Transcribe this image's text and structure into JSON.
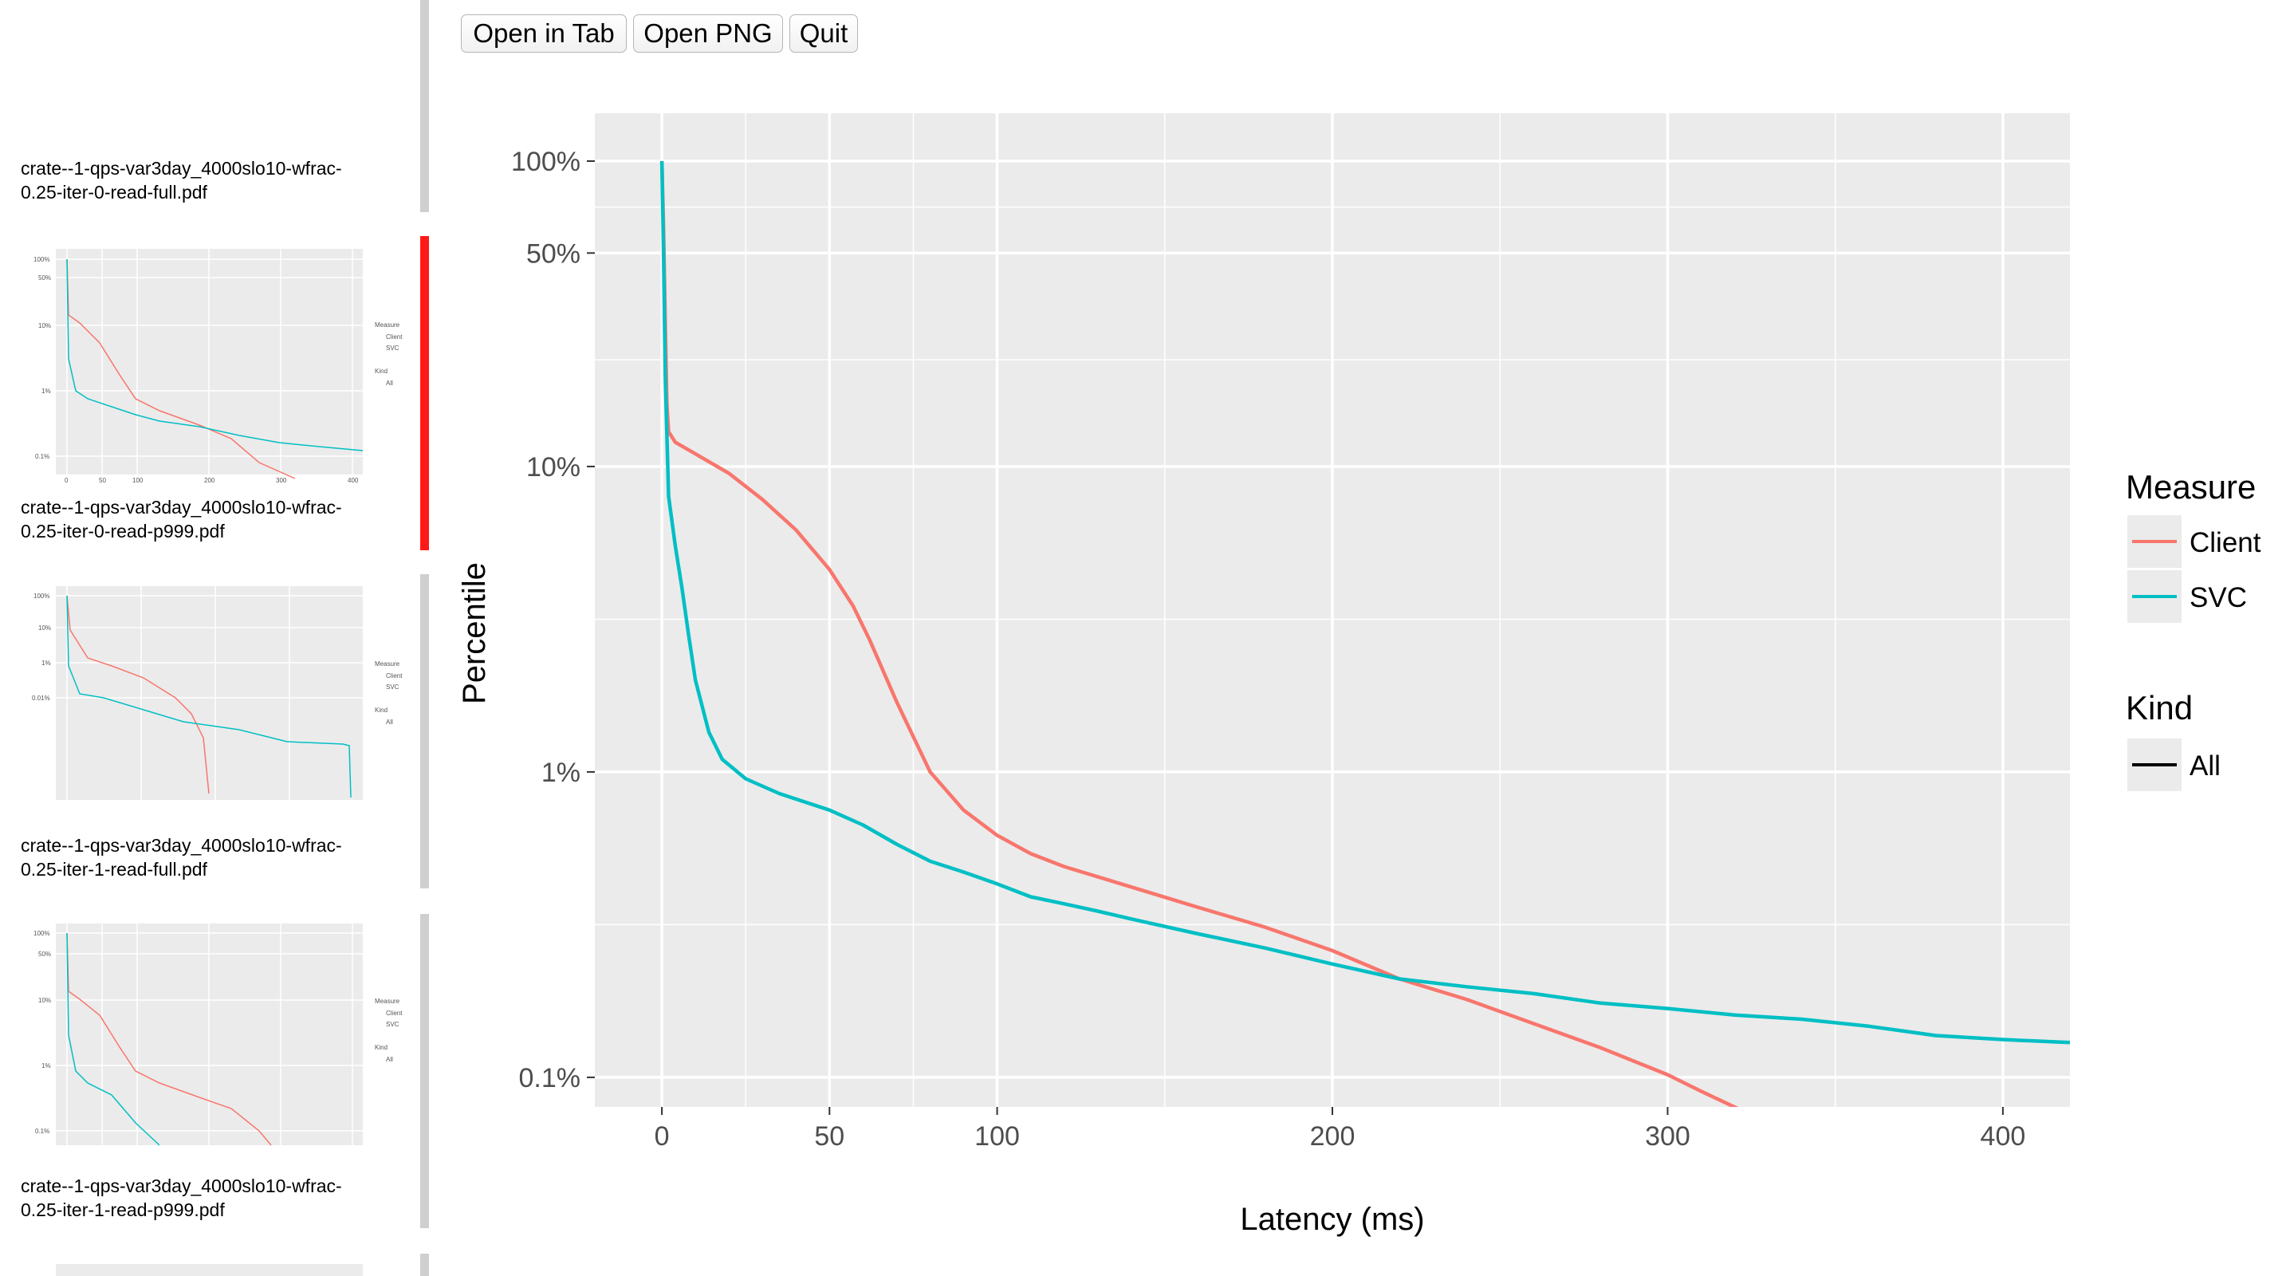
{
  "toolbar": {
    "open_tab_label": "Open in Tab",
    "open_png_label": "Open PNG",
    "quit_label": "Quit"
  },
  "sidebar": {
    "items": [
      {
        "label": "crate--1-qps-var3day_4000slo10-wfrac-\n0.25-iter-0-read-full.pdf",
        "selected": false
      },
      {
        "label": "crate--1-qps-var3day_4000slo10-wfrac-\n0.25-iter-0-read-p999.pdf",
        "selected": true
      },
      {
        "label": "crate--1-qps-var3day_4000slo10-wfrac-\n0.25-iter-1-read-full.pdf",
        "selected": false
      },
      {
        "label": "crate--1-qps-var3day_4000slo10-wfrac-\n0.25-iter-1-read-p999.pdf",
        "selected": false
      }
    ]
  },
  "colors": {
    "client": "#F8766D",
    "svc": "#00BFC4",
    "panel": "#EBEBEB",
    "grid": "#FFFFFF",
    "selected_bar": "#FF1A1A"
  },
  "chart_data": {
    "type": "line",
    "title": "",
    "xlabel": "Latency (ms)",
    "ylabel": "Percentile",
    "y_scale": "log",
    "xlim": [
      -20,
      420
    ],
    "ylim": [
      0.08,
      100
    ],
    "x_ticks": [
      0,
      50,
      100,
      200,
      300,
      400
    ],
    "y_ticks": [
      {
        "value": 100,
        "label": "100%"
      },
      {
        "value": 50,
        "label": "50%"
      },
      {
        "value": 10,
        "label": "10%"
      },
      {
        "value": 1,
        "label": "1%"
      },
      {
        "value": 0.1,
        "label": "0.1%"
      }
    ],
    "grid": true,
    "legend": {
      "position": "right",
      "measure_title": "Measure",
      "kind_title": "Kind",
      "kind_entries": [
        "All"
      ]
    },
    "series": [
      {
        "name": "Client",
        "points": [
          [
            0,
            100
          ],
          [
            0.5,
            60
          ],
          [
            1,
            30
          ],
          [
            1.5,
            16
          ],
          [
            2,
            13
          ],
          [
            4,
            12
          ],
          [
            10,
            11
          ],
          [
            20,
            9.5
          ],
          [
            30,
            7.8
          ],
          [
            40,
            6.2
          ],
          [
            50,
            4.6
          ],
          [
            57,
            3.5
          ],
          [
            62,
            2.7
          ],
          [
            70,
            1.7
          ],
          [
            80,
            1.0
          ],
          [
            90,
            0.75
          ],
          [
            100,
            0.62
          ],
          [
            110,
            0.54
          ],
          [
            120,
            0.49
          ],
          [
            140,
            0.42
          ],
          [
            160,
            0.36
          ],
          [
            180,
            0.31
          ],
          [
            200,
            0.26
          ],
          [
            220,
            0.21
          ],
          [
            240,
            0.18
          ],
          [
            260,
            0.15
          ],
          [
            280,
            0.125
          ],
          [
            300,
            0.102
          ],
          [
            310,
            0.09
          ],
          [
            322,
            0.078
          ]
        ]
      },
      {
        "name": "SVC",
        "points": [
          [
            0,
            100
          ],
          [
            0.5,
            50
          ],
          [
            1,
            20
          ],
          [
            2,
            8
          ],
          [
            4,
            5.5
          ],
          [
            6,
            4
          ],
          [
            8,
            2.8
          ],
          [
            10,
            2
          ],
          [
            14,
            1.35
          ],
          [
            18,
            1.1
          ],
          [
            25,
            0.95
          ],
          [
            35,
            0.85
          ],
          [
            50,
            0.75
          ],
          [
            60,
            0.67
          ],
          [
            70,
            0.58
          ],
          [
            80,
            0.51
          ],
          [
            90,
            0.47
          ],
          [
            100,
            0.43
          ],
          [
            110,
            0.39
          ],
          [
            120,
            0.37
          ],
          [
            130,
            0.35
          ],
          [
            140,
            0.33
          ],
          [
            160,
            0.295
          ],
          [
            180,
            0.265
          ],
          [
            200,
            0.235
          ],
          [
            220,
            0.21
          ],
          [
            240,
            0.198
          ],
          [
            260,
            0.188
          ],
          [
            280,
            0.175
          ],
          [
            300,
            0.168
          ],
          [
            320,
            0.16
          ],
          [
            340,
            0.155
          ],
          [
            360,
            0.147
          ],
          [
            380,
            0.137
          ],
          [
            400,
            0.133
          ],
          [
            420,
            0.13
          ]
        ]
      }
    ]
  }
}
